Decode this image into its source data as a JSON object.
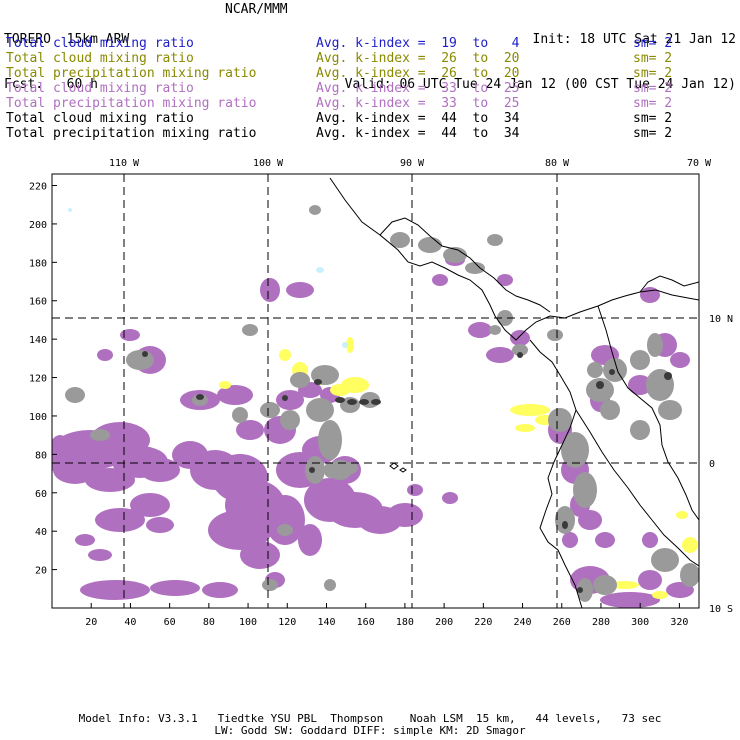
{
  "header": {
    "model": "TORERO  15km ARW",
    "forecast": "Fcst.   60 h",
    "center": "NCAR/MMM",
    "init": "Init: 18 UTC Sat 21 Jan 12",
    "valid": "Valid: 06 UTC Tue 24 Jan 12 (00 CST Tue 24 Jan 12)"
  },
  "legend": [
    {
      "field": "Total cloud mixing ratio",
      "kindex": "Avg. k-index =  19  to   4",
      "sm": "sm= 2",
      "color": "#2020c8"
    },
    {
      "field": "Total cloud mixing ratio",
      "kindex": "Avg. k-index =  26  to  20",
      "sm": "sm= 2",
      "color": "#8a8a00"
    },
    {
      "field": "Total precipitation mixing ratio",
      "kindex": "Avg. k-index =  26  to  20",
      "sm": "sm= 2",
      "color": "#8a8a00"
    },
    {
      "field": "Total cloud mixing ratio",
      "kindex": "Avg. k-index =  33  to  25",
      "sm": "sm= 2",
      "color": "#b070c0"
    },
    {
      "field": "Total precipitation mixing ratio",
      "kindex": "Avg. k-index =  33  to  25",
      "sm": "sm= 2",
      "color": "#b070c0"
    },
    {
      "field": "Total cloud mixing ratio",
      "kindex": "Avg. k-index =  44  to  34",
      "sm": "sm= 2",
      "color": "#000000"
    },
    {
      "field": "Total precipitation mixing ratio",
      "kindex": "Avg. k-index =  44  to  34",
      "sm": "sm= 2",
      "color": "#000000"
    }
  ],
  "map": {
    "lon_labels": [
      "110 W",
      "100 W",
      "90 W",
      "80 W",
      "70 W"
    ],
    "lat_labels": [
      "10 N",
      "0",
      "10 S"
    ],
    "x_ticks": [
      "20",
      "40",
      "60",
      "80",
      "100",
      "120",
      "140",
      "160",
      "180",
      "200",
      "220",
      "240",
      "260",
      "280",
      "300",
      "320"
    ],
    "y_ticks": [
      "220",
      "200",
      "180",
      "160",
      "140",
      "120",
      "100",
      "80",
      "60",
      "40",
      "20"
    ],
    "colors": {
      "purple": "#b070c0",
      "gray": "#9a9a9a",
      "dark": "#3a3a3a",
      "yellow": "#ffff60",
      "cyan": "#c8f0ff"
    }
  },
  "footer": {
    "line1": "Model Info: V3.3.1   Tiedtke YSU PBL  Thompson    Noah LSM  15 km,   44 levels,   73 sec",
    "line2": "LW: Godd SW: Goddard DIFF: simple KM: 2D Smagor"
  }
}
